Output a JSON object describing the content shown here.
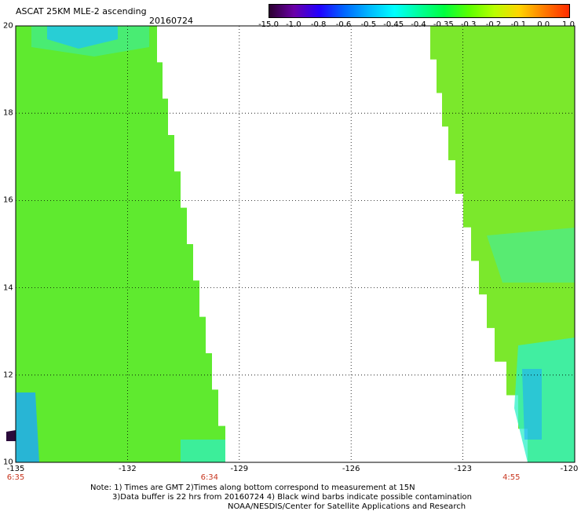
{
  "title": "ASCAT 25KM MLE-2 ascending",
  "date": "20160724",
  "colorbar": {
    "labels": [
      "-15.0",
      "-1.0",
      "-0.8",
      "-0.6",
      "-0.5",
      "-0.45",
      "-0.4",
      "-0.35",
      "-0.3",
      "-0.2",
      "-0.1",
      "0.0",
      "1.0"
    ],
    "colors": [
      "#2b0030",
      "#6a00a8",
      "#2200ff",
      "#0066ff",
      "#00b8ff",
      "#00ffff",
      "#00ff9a",
      "#00ff40",
      "#5cff00",
      "#b8ff00",
      "#ffd400",
      "#ff7a00",
      "#ff2a00"
    ]
  },
  "axes": {
    "lon_labels": [
      "-135",
      "-132",
      "-129",
      "-126",
      "-123",
      "-120"
    ],
    "lat_labels": [
      "20",
      "18",
      "16",
      "14",
      "12",
      "10"
    ],
    "lon_range": [
      -135,
      -120
    ],
    "lat_range": [
      10,
      20
    ]
  },
  "times": [
    {
      "label": "6:35",
      "lon": -135
    },
    {
      "label": "6:34",
      "lon": -129.8
    },
    {
      "label": "4:55",
      "lon": -121.7
    }
  ],
  "notes": [
    "Note: 1) Times are GMT 2)Times along bottom correspond to measurement at 15N",
    "3)Data buffer is 22 hrs from 20160724 4) Black wind barbs indicate possible contamination",
    "NOAA/NESDIS/Center for Satellite Applications and Research"
  ],
  "swaths": {
    "west_color": "#5fea2f",
    "east_color": "#7be82c",
    "cyan_color": "#2ef0c8",
    "blue_color": "#1aa8ff"
  }
}
